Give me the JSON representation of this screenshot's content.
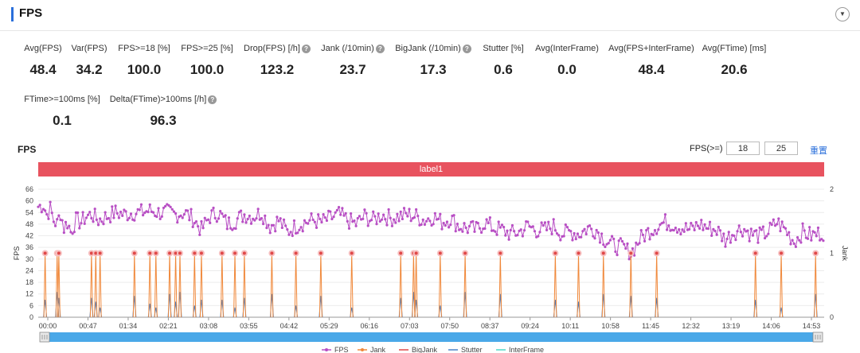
{
  "header": {
    "title": "FPS",
    "collapse_icon": "chevron-down-icon"
  },
  "metrics_row1": [
    {
      "label": "Avg(FPS)",
      "value": "48.4",
      "help": false
    },
    {
      "label": "Var(FPS)",
      "value": "34.2",
      "help": false
    },
    {
      "label": "FPS>=18 [%]",
      "value": "100.0",
      "help": false
    },
    {
      "label": "FPS>=25 [%]",
      "value": "100.0",
      "help": false
    },
    {
      "label": "Drop(FPS) [/h]",
      "value": "123.2",
      "help": true
    },
    {
      "label": "Jank (/10min)",
      "value": "23.7",
      "help": true
    },
    {
      "label": "BigJank (/10min)",
      "value": "17.3",
      "help": true
    },
    {
      "label": "Stutter [%]",
      "value": "0.6",
      "help": false
    },
    {
      "label": "Avg(InterFrame)",
      "value": "0.0",
      "help": false
    },
    {
      "label": "Avg(FPS+InterFrame)",
      "value": "48.4",
      "help": false
    },
    {
      "label": "Avg(FTime) [ms]",
      "value": "20.6",
      "help": false
    }
  ],
  "metrics_row2": [
    {
      "label": "FTime>=100ms [%]",
      "value": "0.1",
      "help": false
    },
    {
      "label": "Delta(FTime)>100ms [/h]",
      "value": "96.3",
      "help": true
    }
  ],
  "chart_controls": {
    "title": "FPS",
    "threshold_label": "FPS(>=)",
    "threshold_1": "18",
    "threshold_2": "25",
    "reset_label": "重置",
    "label_bar": "label1"
  },
  "colors": {
    "fps": "#b84fc4",
    "jank": "#f0883a",
    "bigjank": "#e04848",
    "stutter": "#4a82c8",
    "interframe": "#4dd9c8",
    "label_bar": "#e8535f",
    "slider": "#4aa8e8"
  },
  "chart_data": {
    "type": "line",
    "title": "FPS",
    "ylabel_left": "FPS",
    "ylabel_right": "Jank",
    "y_left_ticks": [
      0,
      6,
      12,
      18,
      24,
      30,
      36,
      42,
      48,
      54,
      60,
      66
    ],
    "y_left_range": [
      0,
      66
    ],
    "y_right_ticks": [
      0,
      1,
      2
    ],
    "y_right_range": [
      0,
      2
    ],
    "x_ticks": [
      "00:00",
      "00:47",
      "01:34",
      "02:21",
      "03:08",
      "03:55",
      "04:42",
      "05:29",
      "06:16",
      "07:03",
      "07:50",
      "08:37",
      "09:24",
      "10:11",
      "10:58",
      "11:45",
      "12:32",
      "13:19",
      "14:06",
      "14:53"
    ],
    "x_range_seconds": [
      0,
      915
    ],
    "fps_keyframes": [
      [
        0,
        57
      ],
      [
        6,
        58
      ],
      [
        10,
        53
      ],
      [
        14,
        56
      ],
      [
        18,
        50
      ],
      [
        22,
        48
      ],
      [
        26,
        54
      ],
      [
        30,
        46
      ],
      [
        34,
        49
      ],
      [
        38,
        44
      ],
      [
        44,
        50
      ],
      [
        50,
        49
      ],
      [
        56,
        52
      ],
      [
        62,
        53
      ],
      [
        70,
        50
      ],
      [
        80,
        52
      ],
      [
        90,
        54
      ],
      [
        100,
        53
      ],
      [
        110,
        54
      ],
      [
        120,
        54
      ],
      [
        130,
        55
      ],
      [
        140,
        54
      ],
      [
        150,
        54
      ],
      [
        160,
        53
      ],
      [
        170,
        54
      ],
      [
        180,
        51
      ],
      [
        190,
        45
      ],
      [
        200,
        52
      ],
      [
        210,
        54
      ],
      [
        220,
        48
      ],
      [
        230,
        50
      ],
      [
        240,
        53
      ],
      [
        250,
        52
      ],
      [
        260,
        54
      ],
      [
        270,
        47
      ],
      [
        280,
        50
      ],
      [
        290,
        44
      ],
      [
        300,
        47
      ],
      [
        310,
        49
      ],
      [
        320,
        50
      ],
      [
        330,
        49
      ],
      [
        340,
        51
      ],
      [
        350,
        53
      ],
      [
        360,
        50
      ],
      [
        370,
        48
      ],
      [
        380,
        52
      ],
      [
        390,
        50
      ],
      [
        400,
        53
      ],
      [
        410,
        51
      ],
      [
        420,
        52
      ],
      [
        430,
        53
      ],
      [
        440,
        52
      ],
      [
        450,
        50
      ],
      [
        460,
        52
      ],
      [
        470,
        49
      ],
      [
        480,
        51
      ],
      [
        490,
        47
      ],
      [
        500,
        46
      ],
      [
        510,
        45
      ],
      [
        520,
        49
      ],
      [
        530,
        46
      ],
      [
        540,
        45
      ],
      [
        550,
        43
      ],
      [
        560,
        44
      ],
      [
        570,
        47
      ],
      [
        580,
        45
      ],
      [
        590,
        45
      ],
      [
        600,
        47
      ],
      [
        610,
        43
      ],
      [
        620,
        44
      ],
      [
        630,
        43
      ],
      [
        640,
        46
      ],
      [
        650,
        45
      ],
      [
        660,
        40
      ],
      [
        670,
        37
      ],
      [
        680,
        36
      ],
      [
        690,
        33
      ],
      [
        700,
        40
      ],
      [
        710,
        44
      ],
      [
        720,
        47
      ],
      [
        730,
        49
      ],
      [
        740,
        48
      ],
      [
        750,
        46
      ],
      [
        760,
        45
      ],
      [
        770,
        48
      ],
      [
        780,
        46
      ],
      [
        790,
        45
      ],
      [
        800,
        40
      ],
      [
        810,
        44
      ],
      [
        820,
        46
      ],
      [
        830,
        43
      ],
      [
        840,
        42
      ],
      [
        850,
        44
      ],
      [
        860,
        49
      ],
      [
        870,
        45
      ],
      [
        880,
        39
      ],
      [
        890,
        44
      ],
      [
        900,
        42
      ],
      [
        915,
        44
      ]
    ],
    "jank_events_seconds": [
      8,
      22,
      24,
      62,
      67,
      72,
      112,
      130,
      137,
      153,
      160,
      165,
      182,
      190,
      214,
      229,
      240,
      272,
      300,
      329,
      365,
      422,
      437,
      440,
      468,
      497,
      538,
      602,
      629,
      658,
      690,
      720,
      835,
      865,
      905
    ],
    "jank_values": 1,
    "stutter_events_seconds": [
      8,
      22,
      24,
      62,
      67,
      72,
      112,
      130,
      137,
      153,
      160,
      165,
      182,
      190,
      214,
      229,
      240,
      272,
      300,
      329,
      365,
      422,
      437,
      440,
      468,
      497,
      538,
      602,
      629,
      658,
      690,
      720,
      835,
      865,
      905
    ],
    "stutter_values_fps": [
      9,
      13,
      10,
      10,
      8,
      5,
      11,
      7,
      5,
      12,
      8,
      13,
      6,
      9,
      9,
      5,
      10,
      12,
      6,
      11,
      5,
      10,
      13,
      9,
      6,
      13,
      12,
      9,
      8,
      12,
      11,
      10,
      9,
      5,
      12
    ],
    "legend": [
      "FPS",
      "Jank",
      "BigJank",
      "Stutter",
      "InterFrame"
    ]
  }
}
